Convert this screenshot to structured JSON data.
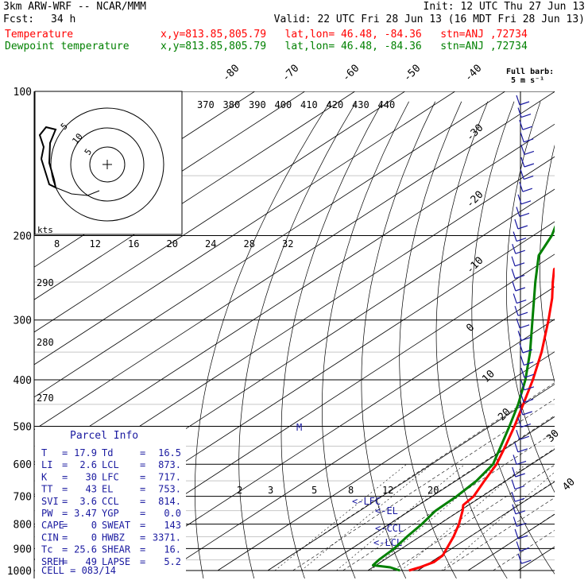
{
  "header": {
    "model": "3km ARW-WRF -- NCAR/MMM",
    "init": "Init: 12 UTC Thu 27 Jun 13",
    "fcst_label": "Fcst:",
    "fcst_value": "34 h",
    "valid": "Valid: 22 UTC Fri 28 Jun 13 (16 MDT Fri 28 Jun 13)",
    "temp_label": "Temperature",
    "temp_info": "x,y=813.85,805.79   lat,lon= 46.48, -84.36   stn=ANJ ,72734",
    "dew_label": "Dewpoint temperature",
    "dew_info": "x,y=813.85,805.79   lat,lon= 46.48, -84.36   stn=ANJ ,72734",
    "temp_color": "#ff0000",
    "dew_color": "#008000"
  },
  "barb_legend": {
    "line1": "Full barb:",
    "line2": "5 m s⁻¹"
  },
  "hodograph": {
    "units": "kts",
    "ring_labels": [
      "5",
      "10",
      "5"
    ]
  },
  "parcel_info": {
    "title": "Parcel Info",
    "rows": [
      {
        "k1": "T",
        "v1": "17.9",
        "k2": "Td",
        "v2": "16.5"
      },
      {
        "k1": "LI",
        "v1": "2.6",
        "k2": "LCL",
        "v2": "873."
      },
      {
        "k1": "K",
        "v1": "30",
        "k2": "LFC",
        "v2": "717."
      },
      {
        "k1": "TT",
        "v1": "43",
        "k2": "EL",
        "v2": "753."
      },
      {
        "k1": "SVI",
        "v1": "3.6",
        "k2": "CCL",
        "v2": "814."
      },
      {
        "k1": "PW",
        "v1": "3.47",
        "k2": "YGP",
        "v2": "0.0"
      },
      {
        "k1": "CAPE",
        "v1": "0",
        "k2": "SWEAT",
        "v2": "143"
      },
      {
        "k1": "CIN",
        "v1": "0",
        "k2": "HWBZ",
        "v2": "3371."
      },
      {
        "k1": "Tc",
        "v1": "25.6",
        "k2": "SHEAR",
        "v2": "16."
      },
      {
        "k1": "SREH",
        "v1": "49",
        "k2": "LAPSE",
        "v2": "5.2"
      }
    ],
    "cell": "CELL = 083/14"
  },
  "chart_data": {
    "type": "line",
    "subtype": "skew-t log-p",
    "y_axis": {
      "scale": "log",
      "ylim": [
        1000,
        100
      ],
      "tick_labels": [
        100,
        200,
        300,
        400,
        500,
        600,
        700,
        800,
        900,
        1000
      ]
    },
    "skewed_isotherm_labels": [
      -80,
      -70,
      -60,
      -50,
      -40,
      -30,
      -20,
      -10,
      0,
      10,
      20,
      30,
      40
    ],
    "theta_e_labels": [
      370,
      380,
      390,
      400,
      410,
      420,
      430,
      440
    ],
    "theta_labels": [
      290,
      280,
      270
    ],
    "mixing_ratio_labels": [
      2,
      3,
      5,
      8,
      12,
      20
    ],
    "upper_axis_labels": [
      8,
      12,
      16,
      20,
      24,
      28,
      32
    ],
    "level_markers": [
      "<-LFC",
      "<-EL",
      "<-CCL",
      "<-LCL"
    ],
    "level_marker_M": "M",
    "series": [
      {
        "name": "Temperature",
        "color": "#ff0000",
        "points": [
          [
            1000,
            18.2
          ],
          [
            985,
            19.4
          ],
          [
            960,
            20.6
          ],
          [
            930,
            20.3
          ],
          [
            900,
            19.0
          ],
          [
            850,
            16.7
          ],
          [
            800,
            13.9
          ],
          [
            750,
            10.5
          ],
          [
            730,
            8.9
          ],
          [
            700,
            8.3
          ],
          [
            650,
            5.7
          ],
          [
            600,
            3.0
          ],
          [
            550,
            -0.8
          ],
          [
            500,
            -5.1
          ],
          [
            450,
            -10.1
          ],
          [
            400,
            -15.7
          ],
          [
            350,
            -22.5
          ],
          [
            300,
            -31.0
          ],
          [
            270,
            -37.0
          ],
          [
            250,
            -41.8
          ],
          [
            235,
            -45.5
          ],
          [
            220,
            -45.7
          ],
          [
            200,
            -47.5
          ],
          [
            190,
            -49.5
          ],
          [
            150,
            -55.3
          ],
          [
            130,
            -57.0
          ],
          [
            115,
            -56.8
          ],
          [
            100,
            -57.2
          ]
        ]
      },
      {
        "name": "Dewpoint temperature",
        "color": "#008000",
        "points": [
          [
            1000,
            16.4
          ],
          [
            985,
            13.5
          ],
          [
            975,
            9.4
          ],
          [
            950,
            8.9
          ],
          [
            900,
            8.5
          ],
          [
            850,
            7.4
          ],
          [
            800,
            6.5
          ],
          [
            750,
            5.1
          ],
          [
            700,
            4.9
          ],
          [
            650,
            4.1
          ],
          [
            600,
            2.3
          ],
          [
            550,
            -1.7
          ],
          [
            500,
            -6.1
          ],
          [
            450,
            -11.1
          ],
          [
            400,
            -17.2
          ],
          [
            350,
            -24.8
          ],
          [
            300,
            -34.2
          ],
          [
            250,
            -45.3
          ],
          [
            220,
            -52.8
          ],
          [
            200,
            -56.3
          ],
          [
            185,
            -60.0
          ],
          [
            165,
            -61.0
          ],
          [
            140,
            -55.0
          ],
          [
            130,
            -56.0
          ],
          [
            120,
            -66.0
          ],
          [
            100,
            -71.0
          ]
        ]
      }
    ]
  }
}
